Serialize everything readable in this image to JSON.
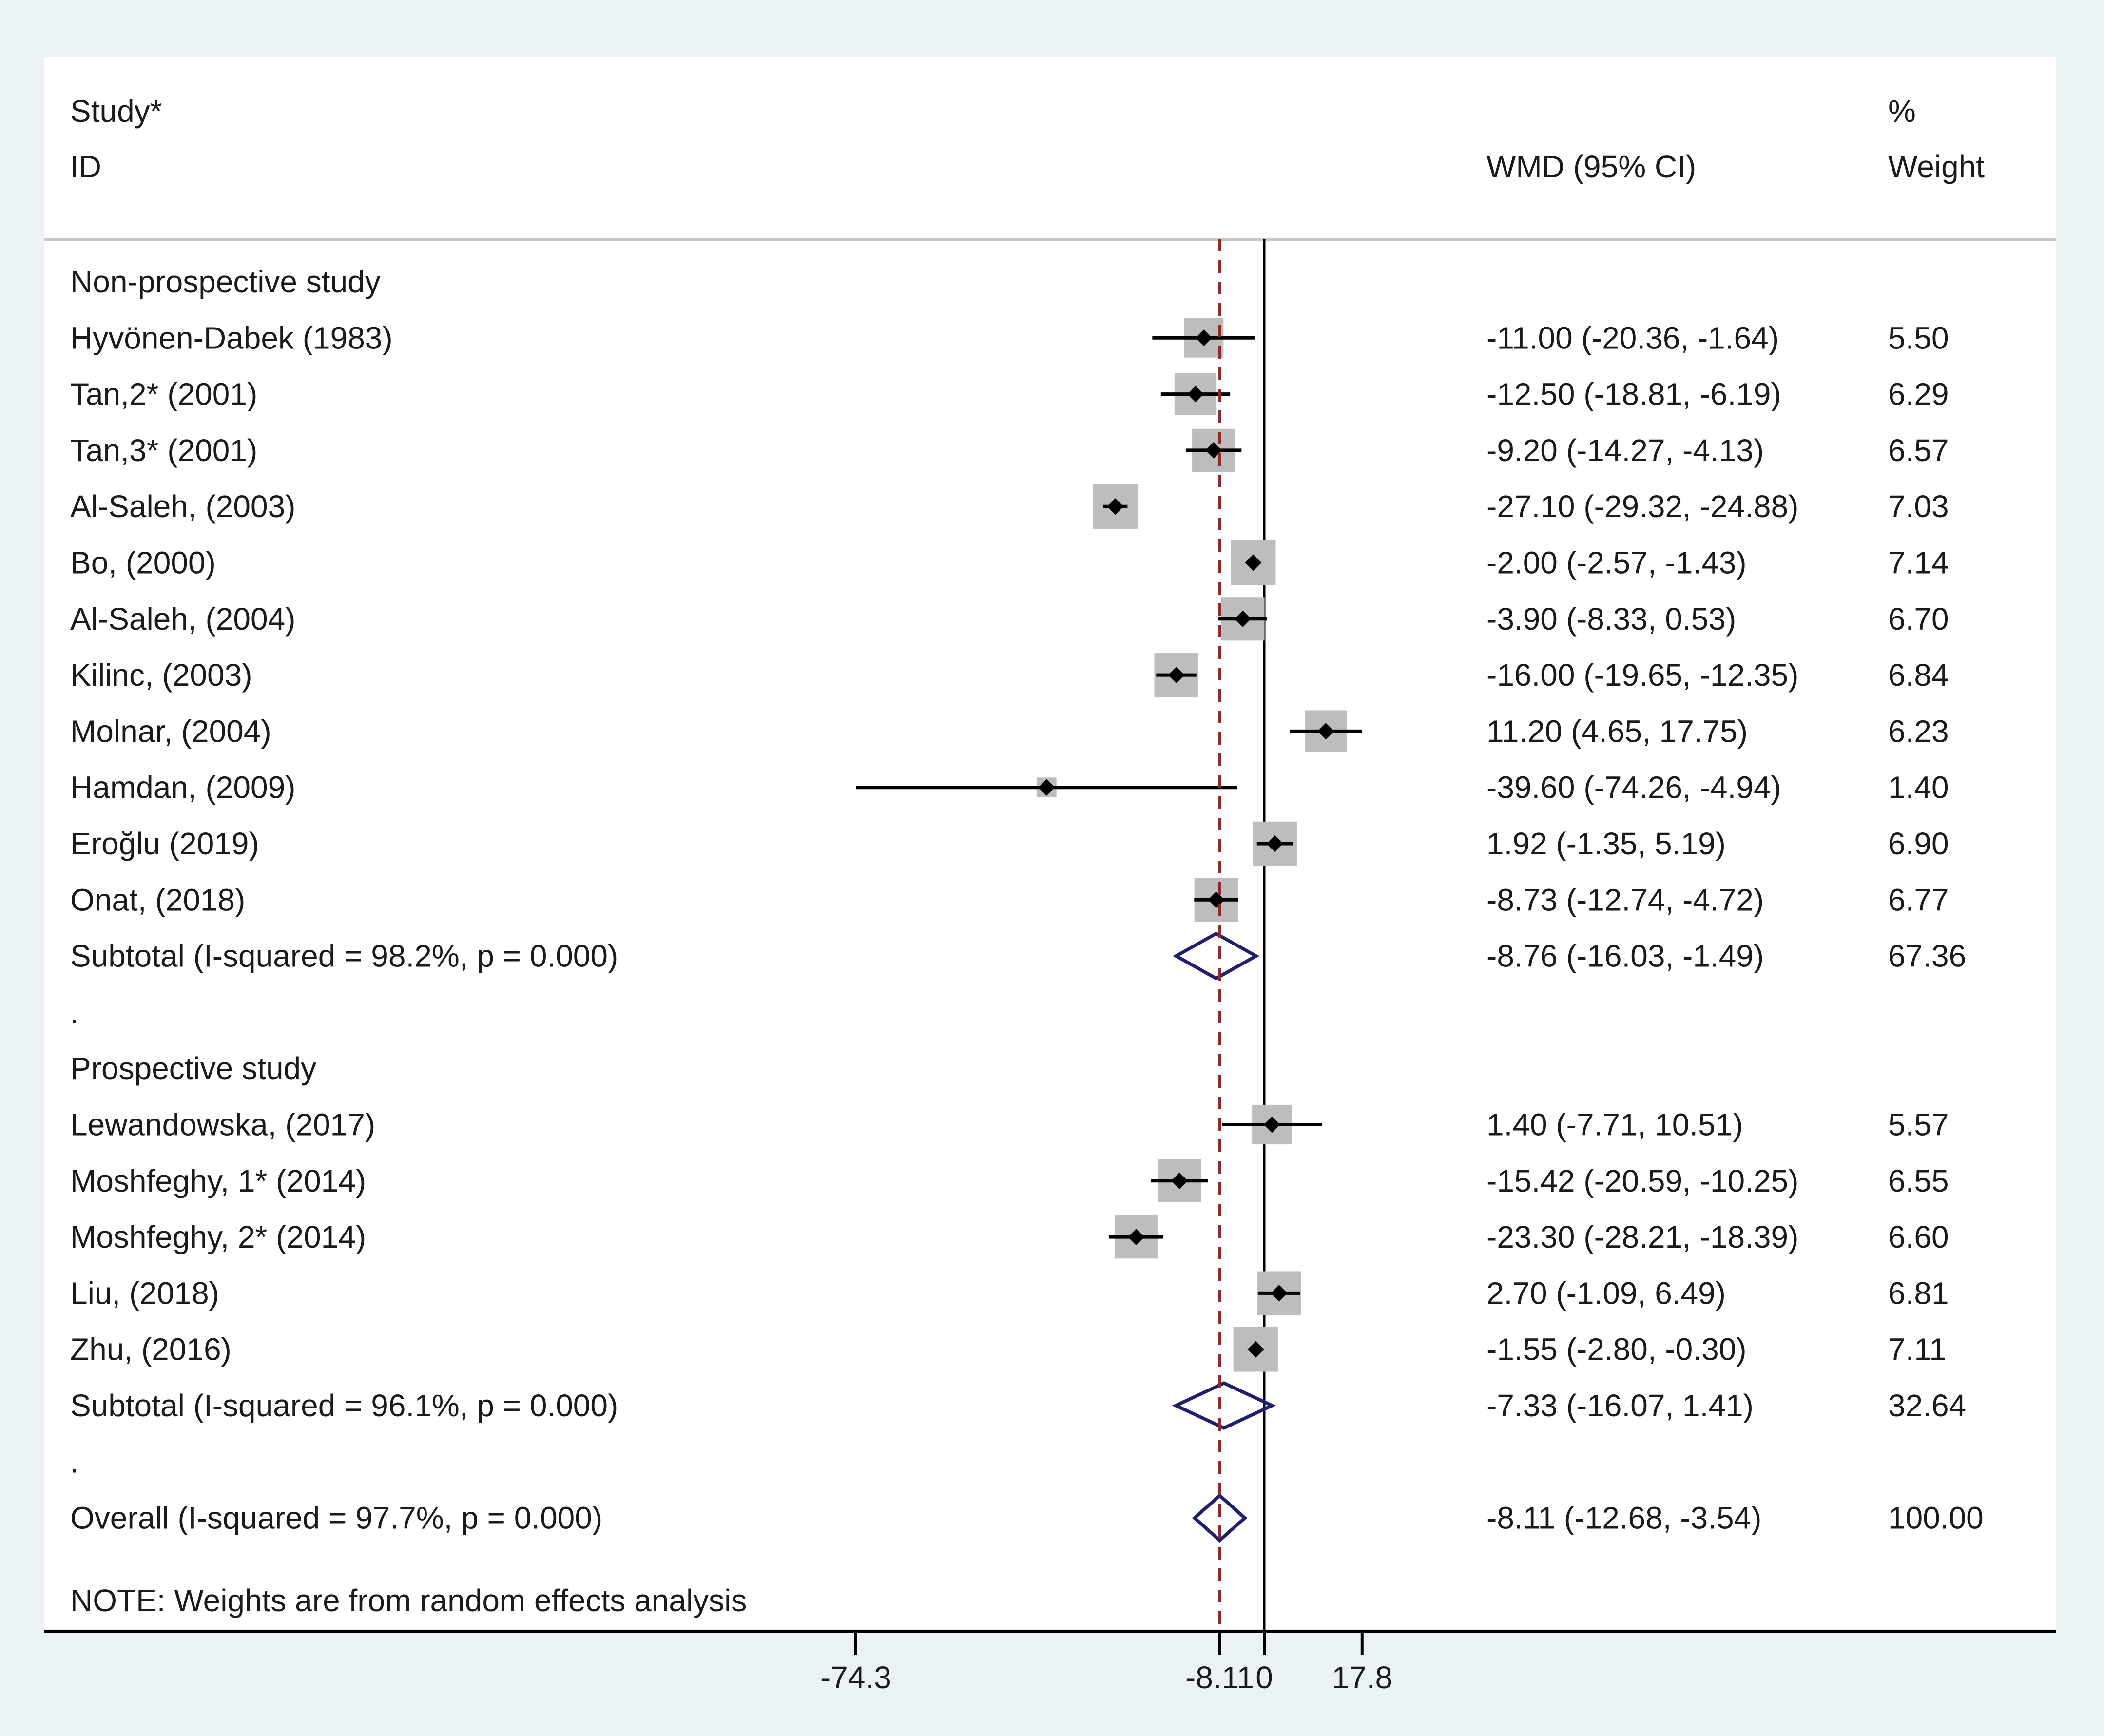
{
  "chart_data": {
    "type": "forest",
    "header": {
      "study_line1": "Study*",
      "study_line2": "ID",
      "effect_label": "WMD (95% CI)",
      "weight_line1": "%",
      "weight_line2": "Weight"
    },
    "axis": {
      "ticks": [
        {
          "value": -74.3,
          "label": "-74.3"
        },
        {
          "value": -8.11,
          "label": "-8.11"
        },
        {
          "value": 0,
          "label": "0"
        },
        {
          "value": 17.8,
          "label": "17.8"
        }
      ],
      "reference_line": 0,
      "overall_line": -8.11
    },
    "rows": [
      {
        "kind": "group",
        "label": "Non-prospective study"
      },
      {
        "kind": "study",
        "label": "Hyvönen-Dabek (1983)",
        "es": -11.0,
        "lo": -20.36,
        "hi": -1.64,
        "ci_text": "-11.00 (-20.36, -1.64)",
        "weight": 5.5,
        "weight_text": "5.50"
      },
      {
        "kind": "study",
        "label": "Tan,2* (2001)",
        "es": -12.5,
        "lo": -18.81,
        "hi": -6.19,
        "ci_text": "-12.50 (-18.81, -6.19)",
        "weight": 6.29,
        "weight_text": "6.29"
      },
      {
        "kind": "study",
        "label": "Tan,3* (2001)",
        "es": -9.2,
        "lo": -14.27,
        "hi": -4.13,
        "ci_text": "-9.20 (-14.27, -4.13)",
        "weight": 6.57,
        "weight_text": "6.57"
      },
      {
        "kind": "study",
        "label": "Al-Saleh, (2003)",
        "es": -27.1,
        "lo": -29.32,
        "hi": -24.88,
        "ci_text": "-27.10 (-29.32, -24.88)",
        "weight": 7.03,
        "weight_text": "7.03"
      },
      {
        "kind": "study",
        "label": "Bo, (2000)",
        "es": -2.0,
        "lo": -2.57,
        "hi": -1.43,
        "ci_text": "-2.00 (-2.57, -1.43)",
        "weight": 7.14,
        "weight_text": "7.14"
      },
      {
        "kind": "study",
        "label": "Al-Saleh, (2004)",
        "es": -3.9,
        "lo": -8.33,
        "hi": 0.53,
        "ci_text": "-3.90 (-8.33, 0.53)",
        "weight": 6.7,
        "weight_text": "6.70"
      },
      {
        "kind": "study",
        "label": "Kilinc, (2003)",
        "es": -16.0,
        "lo": -19.65,
        "hi": -12.35,
        "ci_text": "-16.00 (-19.65, -12.35)",
        "weight": 6.84,
        "weight_text": "6.84"
      },
      {
        "kind": "study",
        "label": "Molnar,  (2004)",
        "es": 11.2,
        "lo": 4.65,
        "hi": 17.75,
        "ci_text": "11.20 (4.65, 17.75)",
        "weight": 6.23,
        "weight_text": "6.23"
      },
      {
        "kind": "study",
        "label": "Hamdan, (2009)",
        "es": -39.6,
        "lo": -74.26,
        "hi": -4.94,
        "ci_text": "-39.60 (-74.26, -4.94)",
        "weight": 1.4,
        "weight_text": "1.40"
      },
      {
        "kind": "study",
        "label": "Eroğlu (2019)",
        "es": 1.92,
        "lo": -1.35,
        "hi": 5.19,
        "ci_text": "1.92 (-1.35, 5.19)",
        "weight": 6.9,
        "weight_text": "6.90"
      },
      {
        "kind": "study",
        "label": "Onat,  (2018)",
        "es": -8.73,
        "lo": -12.74,
        "hi": -4.72,
        "ci_text": "-8.73 (-12.74, -4.72)",
        "weight": 6.77,
        "weight_text": "6.77"
      },
      {
        "kind": "subtotal",
        "label": "Subtotal  (I-squared = 98.2%, p = 0.000)",
        "es": -8.76,
        "lo": -16.03,
        "hi": -1.49,
        "ci_text": "-8.76 (-16.03, -1.49)",
        "weight": 67.36,
        "weight_text": "67.36"
      },
      {
        "kind": "spacer",
        "label": "."
      },
      {
        "kind": "group",
        "label": "Prospective study"
      },
      {
        "kind": "study",
        "label": "Lewandowska,  (2017)",
        "es": 1.4,
        "lo": -7.71,
        "hi": 10.51,
        "ci_text": "1.40 (-7.71, 10.51)",
        "weight": 5.57,
        "weight_text": "5.57"
      },
      {
        "kind": "study",
        "label": "Moshfeghy, 1* (2014)",
        "es": -15.42,
        "lo": -20.59,
        "hi": -10.25,
        "ci_text": "-15.42 (-20.59, -10.25)",
        "weight": 6.55,
        "weight_text": "6.55"
      },
      {
        "kind": "study",
        "label": "Moshfeghy, 2* (2014)",
        "es": -23.3,
        "lo": -28.21,
        "hi": -18.39,
        "ci_text": "-23.30 (-28.21, -18.39)",
        "weight": 6.6,
        "weight_text": "6.60"
      },
      {
        "kind": "study",
        "label": "Liu, (2018)",
        "es": 2.7,
        "lo": -1.09,
        "hi": 6.49,
        "ci_text": "2.70 (-1.09, 6.49)",
        "weight": 6.81,
        "weight_text": "6.81"
      },
      {
        "kind": "study",
        "label": "Zhu, (2016)",
        "es": -1.55,
        "lo": -2.8,
        "hi": -0.3,
        "ci_text": "-1.55 (-2.80, -0.30)",
        "weight": 7.11,
        "weight_text": "7.11"
      },
      {
        "kind": "subtotal",
        "label": "Subtotal  (I-squared = 96.1%, p = 0.000)",
        "es": -7.33,
        "lo": -16.07,
        "hi": 1.41,
        "ci_text": "-7.33 (-16.07, 1.41)",
        "weight": 32.64,
        "weight_text": "32.64"
      },
      {
        "kind": "spacer",
        "label": "."
      },
      {
        "kind": "overall",
        "label": "Overall  (I-squared = 97.7%, p = 0.000)",
        "es": -8.11,
        "lo": -12.68,
        "hi": -3.54,
        "ci_text": "-8.11 (-12.68, -3.54)",
        "weight": 100.0,
        "weight_text": "100.00"
      }
    ],
    "note": "NOTE: Weights are from random effects analysis",
    "colors": {
      "background": "#eaf2f3",
      "panel": "#ffffff",
      "weight_box": "#bdbdbd",
      "marker": "#000000",
      "diamond": "#1f1f6e",
      "overall_line": "#8b2a2a",
      "header_rule": "#c8c8c8"
    }
  }
}
